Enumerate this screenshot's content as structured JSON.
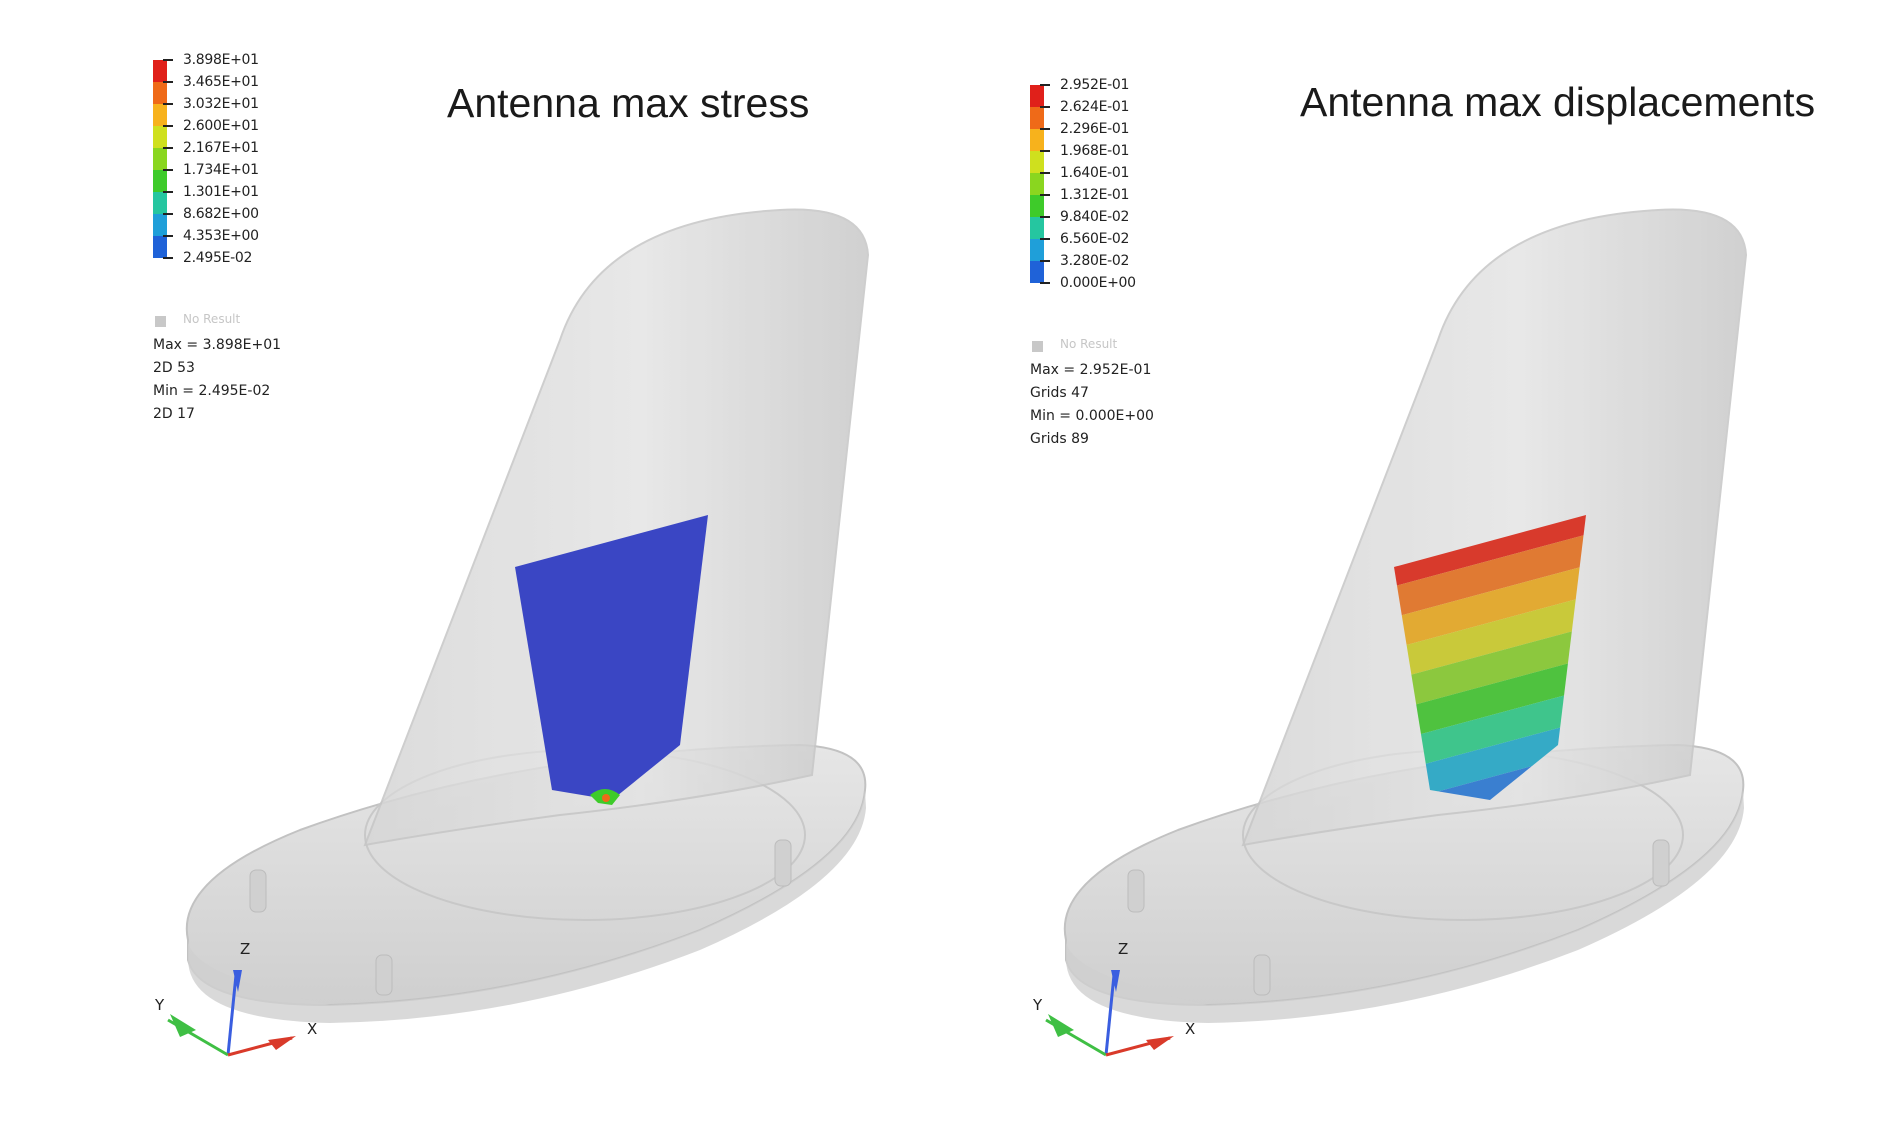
{
  "panels": [
    {
      "title": "Antenna max stress",
      "legend": {
        "labels": [
          "3.898E+01",
          "3.465E+01",
          "3.032E+01",
          "2.600E+01",
          "2.167E+01",
          "1.734E+01",
          "1.301E+01",
          "8.682E+00",
          "4.353E+00",
          "2.495E-02"
        ],
        "colors": [
          "#e0201a",
          "#ef6a18",
          "#f7b21c",
          "#cfe01e",
          "#8ad61f",
          "#3ecb2a",
          "#25c6a0",
          "#1f9fd9",
          "#1f62d8",
          "#1728a8"
        ],
        "no_result": "No Result",
        "stats": [
          "Max = 3.898E+01",
          "2D 53",
          "Min = 2.495E-02",
          "2D 17"
        ]
      },
      "axes": {
        "z": "Z",
        "y": "Y",
        "x": "X"
      },
      "fill": "#3a46c4"
    },
    {
      "title": "Antenna max displacements",
      "legend": {
        "labels": [
          "2.952E-01",
          "2.624E-01",
          "2.296E-01",
          "1.968E-01",
          "1.640E-01",
          "1.312E-01",
          "9.840E-02",
          "6.560E-02",
          "3.280E-02",
          "0.000E+00"
        ],
        "colors": [
          "#e0201a",
          "#ef6a18",
          "#f7b21c",
          "#cfe01e",
          "#8ad61f",
          "#3ecb2a",
          "#25c6a0",
          "#1f9fd9",
          "#1f62d8",
          "#1728a8"
        ],
        "no_result": "No Result",
        "stats": [
          "Max = 2.952E-01",
          "Grids 47",
          "Min = 0.000E+00",
          "Grids 89"
        ]
      },
      "axes": {
        "z": "Z",
        "y": "Y",
        "x": "X"
      },
      "bands": [
        "#d83a2c",
        "#e07a33",
        "#e2aa33",
        "#c9c93a",
        "#8cc83e",
        "#4fc23f",
        "#3fc58c",
        "#35aac6",
        "#3a7fd0",
        "#2c3fb8"
      ]
    }
  ]
}
